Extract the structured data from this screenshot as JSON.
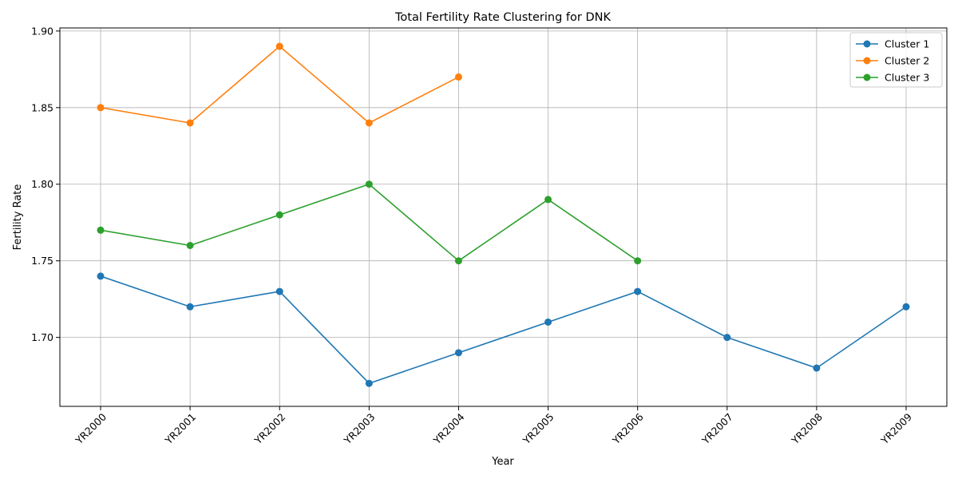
{
  "chart_data": {
    "type": "line",
    "title": "Total Fertility Rate Clustering for DNK",
    "xlabel": "Year",
    "ylabel": "Fertility Rate",
    "categories": [
      "YR2000",
      "YR2001",
      "YR2002",
      "YR2003",
      "YR2004",
      "YR2005",
      "YR2006",
      "YR2007",
      "YR2008",
      "YR2009"
    ],
    "ylim": [
      1.655,
      1.902
    ],
    "yticks": [
      1.7,
      1.75,
      1.8,
      1.85,
      1.9
    ],
    "ytick_labels": [
      "1.70",
      "1.75",
      "1.80",
      "1.85",
      "1.90"
    ],
    "grid": true,
    "legend_position": "top-right",
    "series": [
      {
        "name": "Cluster 1",
        "color": "#1f77b4",
        "values": [
          1.74,
          1.72,
          1.73,
          1.67,
          1.69,
          1.71,
          1.73,
          1.7,
          1.68,
          1.72
        ]
      },
      {
        "name": "Cluster 2",
        "color": "#ff7f0e",
        "values": [
          1.85,
          1.84,
          1.89,
          1.84,
          1.87,
          null,
          null,
          null,
          null,
          null
        ]
      },
      {
        "name": "Cluster 3",
        "color": "#2ca02c",
        "values": [
          1.77,
          1.76,
          1.78,
          1.8,
          1.75,
          1.79,
          1.75,
          null,
          null,
          null
        ]
      }
    ]
  }
}
